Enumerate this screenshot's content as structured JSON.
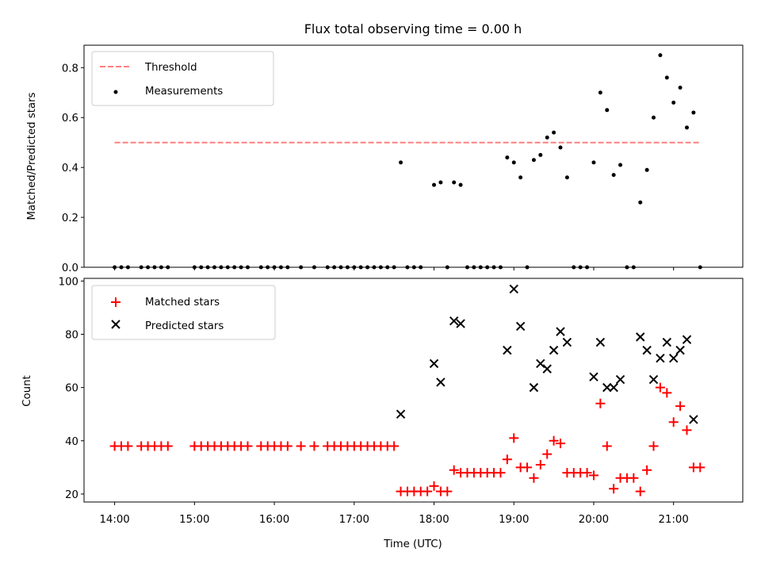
{
  "chart_data": [
    {
      "type": "scatter",
      "title": "Flux total observing time = 0.00 h",
      "ylabel": "Matched/Predicted stars",
      "xlabel": "",
      "xlim": [
        "13:37",
        "21:52"
      ],
      "ylim": [
        0,
        0.89
      ],
      "yticks": [
        0.0,
        0.2,
        0.4,
        0.6,
        0.8
      ],
      "ytick_labels": [
        "0.0",
        "0.2",
        "0.4",
        "0.6",
        "0.8"
      ],
      "legend_position": "top-left",
      "threshold": {
        "name": "Threshold",
        "color": "#ff7f7f",
        "style": "dashed",
        "x": [
          "14:00",
          "21:20"
        ],
        "y": 0.5
      },
      "series": [
        {
          "name": "Measurements",
          "marker": "dot",
          "color": "#000000",
          "points": [
            [
              "14:00",
              0
            ],
            [
              "14:05",
              0
            ],
            [
              "14:10",
              0
            ],
            [
              "14:20",
              0
            ],
            [
              "14:25",
              0
            ],
            [
              "14:30",
              0
            ],
            [
              "14:35",
              0
            ],
            [
              "14:40",
              0
            ],
            [
              "15:00",
              0
            ],
            [
              "15:05",
              0
            ],
            [
              "15:10",
              0
            ],
            [
              "15:15",
              0
            ],
            [
              "15:20",
              0
            ],
            [
              "15:25",
              0
            ],
            [
              "15:30",
              0
            ],
            [
              "15:35",
              0
            ],
            [
              "15:40",
              0
            ],
            [
              "15:50",
              0
            ],
            [
              "15:55",
              0
            ],
            [
              "16:00",
              0
            ],
            [
              "16:05",
              0
            ],
            [
              "16:10",
              0
            ],
            [
              "16:20",
              0
            ],
            [
              "16:30",
              0
            ],
            [
              "16:40",
              0
            ],
            [
              "16:45",
              0
            ],
            [
              "16:50",
              0
            ],
            [
              "16:55",
              0
            ],
            [
              "17:00",
              0
            ],
            [
              "17:05",
              0
            ],
            [
              "17:10",
              0
            ],
            [
              "17:15",
              0
            ],
            [
              "17:20",
              0
            ],
            [
              "17:25",
              0
            ],
            [
              "17:30",
              0
            ],
            [
              "17:35",
              0.42
            ],
            [
              "17:40",
              0
            ],
            [
              "17:45",
              0
            ],
            [
              "17:50",
              0
            ],
            [
              "18:00",
              0.33
            ],
            [
              "18:05",
              0.34
            ],
            [
              "18:10",
              0
            ],
            [
              "18:15",
              0.34
            ],
            [
              "18:20",
              0.33
            ],
            [
              "18:25",
              0
            ],
            [
              "18:30",
              0
            ],
            [
              "18:35",
              0
            ],
            [
              "18:40",
              0
            ],
            [
              "18:45",
              0
            ],
            [
              "18:50",
              0
            ],
            [
              "18:55",
              0.44
            ],
            [
              "19:00",
              0.42
            ],
            [
              "19:05",
              0.36
            ],
            [
              "19:10",
              0
            ],
            [
              "19:15",
              0.43
            ],
            [
              "19:20",
              0.45
            ],
            [
              "19:25",
              0.52
            ],
            [
              "19:30",
              0.54
            ],
            [
              "19:35",
              0.48
            ],
            [
              "19:40",
              0.36
            ],
            [
              "19:45",
              0
            ],
            [
              "19:50",
              0
            ],
            [
              "19:55",
              0
            ],
            [
              "20:00",
              0.42
            ],
            [
              "20:05",
              0.7
            ],
            [
              "20:10",
              0.63
            ],
            [
              "20:15",
              0.37
            ],
            [
              "20:20",
              0.41
            ],
            [
              "20:25",
              0
            ],
            [
              "20:30",
              0
            ],
            [
              "20:35",
              0.26
            ],
            [
              "20:40",
              0.39
            ],
            [
              "20:45",
              0.6
            ],
            [
              "20:50",
              0.85
            ],
            [
              "20:55",
              0.76
            ],
            [
              "21:00",
              0.66
            ],
            [
              "21:05",
              0.72
            ],
            [
              "21:10",
              0.56
            ],
            [
              "21:15",
              0.62
            ],
            [
              "21:20",
              0
            ]
          ]
        }
      ]
    },
    {
      "type": "scatter",
      "title": "",
      "ylabel": "Count",
      "xlabel": "Time (UTC)",
      "xlim": [
        "13:37",
        "21:52"
      ],
      "xticks": [
        "14:00",
        "15:00",
        "16:00",
        "17:00",
        "18:00",
        "19:00",
        "20:00",
        "21:00"
      ],
      "ylim": [
        17,
        101
      ],
      "yticks": [
        20,
        40,
        60,
        80,
        100
      ],
      "ytick_labels": [
        "20",
        "40",
        "60",
        "80",
        "100"
      ],
      "legend_position": "top-left",
      "series": [
        {
          "name": "Matched stars",
          "marker": "plus",
          "color": "#ff0000",
          "points": [
            [
              "14:00",
              38
            ],
            [
              "14:05",
              38
            ],
            [
              "14:10",
              38
            ],
            [
              "14:20",
              38
            ],
            [
              "14:25",
              38
            ],
            [
              "14:30",
              38
            ],
            [
              "14:35",
              38
            ],
            [
              "14:40",
              38
            ],
            [
              "15:00",
              38
            ],
            [
              "15:05",
              38
            ],
            [
              "15:10",
              38
            ],
            [
              "15:15",
              38
            ],
            [
              "15:20",
              38
            ],
            [
              "15:25",
              38
            ],
            [
              "15:30",
              38
            ],
            [
              "15:35",
              38
            ],
            [
              "15:40",
              38
            ],
            [
              "15:50",
              38
            ],
            [
              "15:55",
              38
            ],
            [
              "16:00",
              38
            ],
            [
              "16:05",
              38
            ],
            [
              "16:10",
              38
            ],
            [
              "16:20",
              38
            ],
            [
              "16:30",
              38
            ],
            [
              "16:40",
              38
            ],
            [
              "16:45",
              38
            ],
            [
              "16:50",
              38
            ],
            [
              "16:55",
              38
            ],
            [
              "17:00",
              38
            ],
            [
              "17:05",
              38
            ],
            [
              "17:10",
              38
            ],
            [
              "17:15",
              38
            ],
            [
              "17:20",
              38
            ],
            [
              "17:25",
              38
            ],
            [
              "17:30",
              38
            ],
            [
              "17:35",
              21
            ],
            [
              "17:40",
              21
            ],
            [
              "17:45",
              21
            ],
            [
              "17:50",
              21
            ],
            [
              "17:55",
              21
            ],
            [
              "18:00",
              23
            ],
            [
              "18:05",
              21
            ],
            [
              "18:10",
              21
            ],
            [
              "18:15",
              29
            ],
            [
              "18:20",
              28
            ],
            [
              "18:25",
              28
            ],
            [
              "18:30",
              28
            ],
            [
              "18:35",
              28
            ],
            [
              "18:40",
              28
            ],
            [
              "18:45",
              28
            ],
            [
              "18:50",
              28
            ],
            [
              "18:55",
              33
            ],
            [
              "19:00",
              41
            ],
            [
              "19:05",
              30
            ],
            [
              "19:10",
              30
            ],
            [
              "19:15",
              26
            ],
            [
              "19:20",
              31
            ],
            [
              "19:25",
              35
            ],
            [
              "19:30",
              40
            ],
            [
              "19:35",
              39
            ],
            [
              "19:40",
              28
            ],
            [
              "19:45",
              28
            ],
            [
              "19:50",
              28
            ],
            [
              "19:55",
              28
            ],
            [
              "20:00",
              27
            ],
            [
              "20:05",
              54
            ],
            [
              "20:10",
              38
            ],
            [
              "20:15",
              22
            ],
            [
              "20:20",
              26
            ],
            [
              "20:25",
              26
            ],
            [
              "20:30",
              26
            ],
            [
              "20:35",
              21
            ],
            [
              "20:40",
              29
            ],
            [
              "20:45",
              38
            ],
            [
              "20:50",
              60
            ],
            [
              "20:55",
              58
            ],
            [
              "21:00",
              47
            ],
            [
              "21:05",
              53
            ],
            [
              "21:10",
              44
            ],
            [
              "21:15",
              30
            ],
            [
              "21:20",
              30
            ]
          ]
        },
        {
          "name": "Predicted stars",
          "marker": "x",
          "color": "#000000",
          "points": [
            [
              "17:35",
              50
            ],
            [
              "18:00",
              69
            ],
            [
              "18:05",
              62
            ],
            [
              "18:15",
              85
            ],
            [
              "18:20",
              84
            ],
            [
              "18:55",
              74
            ],
            [
              "19:00",
              97
            ],
            [
              "19:05",
              83
            ],
            [
              "19:15",
              60
            ],
            [
              "19:20",
              69
            ],
            [
              "19:25",
              67
            ],
            [
              "19:30",
              74
            ],
            [
              "19:35",
              81
            ],
            [
              "19:40",
              77
            ],
            [
              "20:00",
              64
            ],
            [
              "20:05",
              77
            ],
            [
              "20:10",
              60
            ],
            [
              "20:15",
              60
            ],
            [
              "20:20",
              63
            ],
            [
              "20:35",
              79
            ],
            [
              "20:40",
              74
            ],
            [
              "20:45",
              63
            ],
            [
              "20:50",
              71
            ],
            [
              "20:55",
              77
            ],
            [
              "21:00",
              71
            ],
            [
              "21:05",
              74
            ],
            [
              "21:10",
              78
            ],
            [
              "21:15",
              48
            ]
          ]
        }
      ]
    }
  ]
}
